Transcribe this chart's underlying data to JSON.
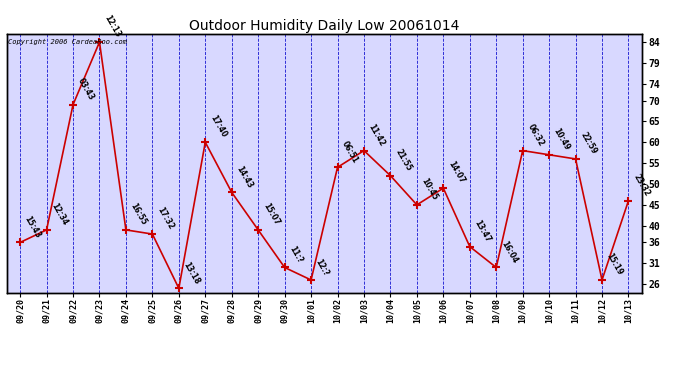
{
  "title": "Outdoor Humidity Daily Low 20061014",
  "copyright": "Copyright 2006 CardeaRoo.com",
  "dates": [
    "09/20",
    "09/21",
    "09/22",
    "09/23",
    "09/24",
    "09/25",
    "09/26",
    "09/27",
    "09/28",
    "09/29",
    "09/30",
    "10/01",
    "10/02",
    "10/03",
    "10/04",
    "10/05",
    "10/06",
    "10/07",
    "10/08",
    "10/09",
    "10/10",
    "10/11",
    "10/12",
    "10/13"
  ],
  "values": [
    36,
    39,
    69,
    84,
    39,
    38,
    25,
    60,
    48,
    39,
    30,
    27,
    54,
    58,
    52,
    45,
    49,
    35,
    30,
    58,
    57,
    56,
    27,
    46
  ],
  "labels": [
    "15:43",
    "12:34",
    "03:43",
    "12:13",
    "16:55",
    "17:32",
    "13:18",
    "17:40",
    "14:43",
    "15:07",
    "11:?",
    "12:?",
    "06:51",
    "11:42",
    "21:55",
    "10:45",
    "14:07",
    "13:47",
    "16:04",
    "06:32",
    "10:49",
    "22:59",
    "15:19",
    "23:32"
  ],
  "line_color": "#cc0000",
  "marker_color": "#cc0000",
  "background_color": "#ffffff",
  "plot_bg_color": "#d8d8ff",
  "grid_color": "#0000cc",
  "title_color": "#000000",
  "yticks": [
    26,
    31,
    36,
    40,
    45,
    50,
    55,
    60,
    65,
    70,
    74,
    79,
    84
  ],
  "ylim": [
    24,
    86
  ],
  "text_color": "#000000",
  "label_fontsize": 5.5,
  "tick_fontsize": 7.0,
  "title_fontsize": 10
}
